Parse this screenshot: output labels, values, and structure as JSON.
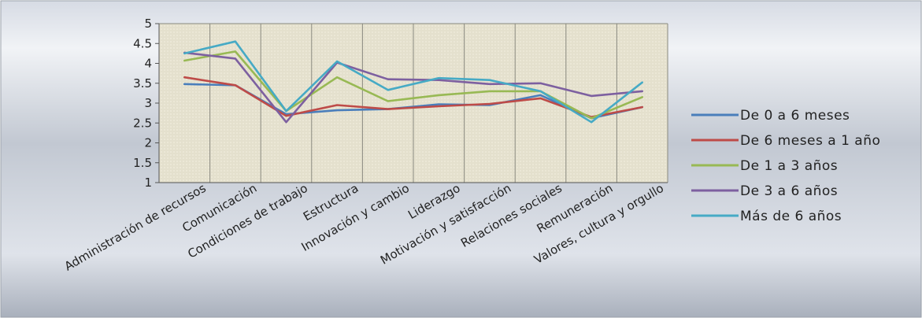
{
  "chart_data": {
    "type": "line",
    "title": "",
    "xlabel": "",
    "ylabel": "",
    "ylim": [
      1,
      5
    ],
    "yticks": [
      "1",
      "1.5",
      "2",
      "2.5",
      "3",
      "3.5",
      "4",
      "4.5",
      "5"
    ],
    "grid": true,
    "legend_position": "right",
    "categories": [
      "Administración de recursos",
      "Comunicación",
      "Condiciones de trabajo",
      "Estructura",
      "Innovación y cambio",
      "Liderazgo",
      "Motivación y satisfacción",
      "Relaciones sociales",
      "Remuneración",
      "Valores, cultura y orgullo"
    ],
    "series": [
      {
        "name": "De 0 a 6 meses",
        "color": "#4a7ebb",
        "values": [
          3.48,
          3.45,
          2.72,
          2.82,
          2.85,
          2.97,
          2.95,
          3.2,
          2.62,
          2.9
        ]
      },
      {
        "name": "De 6 meses a 1 año",
        "color": "#be4b48",
        "values": [
          3.65,
          3.45,
          2.68,
          2.95,
          2.85,
          2.92,
          2.98,
          3.12,
          2.65,
          2.9
        ]
      },
      {
        "name": "De 1 a 3 años",
        "color": "#98b954",
        "values": [
          4.07,
          4.3,
          2.8,
          3.65,
          3.05,
          3.2,
          3.3,
          3.3,
          2.62,
          3.15
        ]
      },
      {
        "name": "De 3 a 6 años",
        "color": "#7d60a0",
        "values": [
          4.27,
          4.12,
          2.52,
          4.02,
          3.6,
          3.58,
          3.48,
          3.5,
          3.18,
          3.3
        ]
      },
      {
        "name": "Más de 6 años",
        "color": "#46aac5",
        "values": [
          4.25,
          4.55,
          2.8,
          4.05,
          3.33,
          3.63,
          3.58,
          3.3,
          2.52,
          3.52
        ]
      }
    ]
  }
}
